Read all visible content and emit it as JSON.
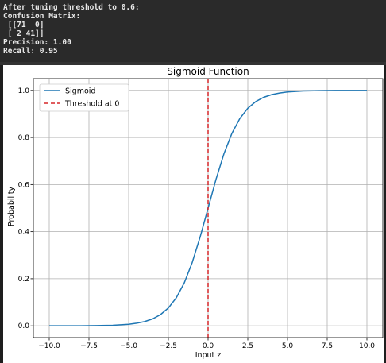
{
  "console": {
    "lines": [
      "After tuning threshold to 0.6:",
      "Confusion Matrix:",
      " [[71  0]",
      " [ 2 41]]",
      "Precision: 1.00",
      "Recall: 0.95"
    ]
  },
  "chart_data": {
    "type": "line",
    "title": "Sigmoid Function",
    "xlabel": "Input z",
    "ylabel": "Probability",
    "xlim": [
      -11,
      11
    ],
    "ylim": [
      -0.05,
      1.05
    ],
    "grid": true,
    "legend_position": "top-left",
    "x_ticks": [
      -10,
      -7.5,
      -5,
      -2.5,
      0,
      2.5,
      5,
      7.5,
      10
    ],
    "x_tick_labels": [
      "−10.0",
      "−7.5",
      "−5.0",
      "−2.5",
      "0.0",
      "2.5",
      "5.0",
      "7.5",
      "10.0"
    ],
    "y_ticks": [
      0,
      0.2,
      0.4,
      0.6,
      0.8,
      1.0
    ],
    "y_tick_labels": [
      "0.0",
      "0.2",
      "0.4",
      "0.6",
      "0.8",
      "1.0"
    ],
    "series": [
      {
        "name": "Sigmoid",
        "color": "#1f77b4",
        "style": "solid",
        "x": [
          -10,
          -9,
          -8,
          -7,
          -6,
          -5,
          -4.5,
          -4,
          -3.5,
          -3,
          -2.5,
          -2,
          -1.5,
          -1,
          -0.5,
          0,
          0.5,
          1,
          1.5,
          2,
          2.5,
          3,
          3.5,
          4,
          4.5,
          5,
          6,
          7,
          8,
          9,
          10
        ],
        "y": [
          0.0,
          0.0001,
          0.0003,
          0.0009,
          0.0025,
          0.0067,
          0.011,
          0.018,
          0.0293,
          0.0474,
          0.0759,
          0.1192,
          0.1824,
          0.2689,
          0.3775,
          0.5,
          0.6225,
          0.7311,
          0.8176,
          0.8808,
          0.9241,
          0.9526,
          0.9707,
          0.982,
          0.989,
          0.9933,
          0.9975,
          0.9991,
          0.9997,
          0.9999,
          1.0
        ]
      },
      {
        "name": "Threshold at 0",
        "color": "#d62728",
        "style": "dashed",
        "x": [
          0,
          0
        ],
        "y": [
          -0.05,
          1.05
        ]
      }
    ]
  }
}
